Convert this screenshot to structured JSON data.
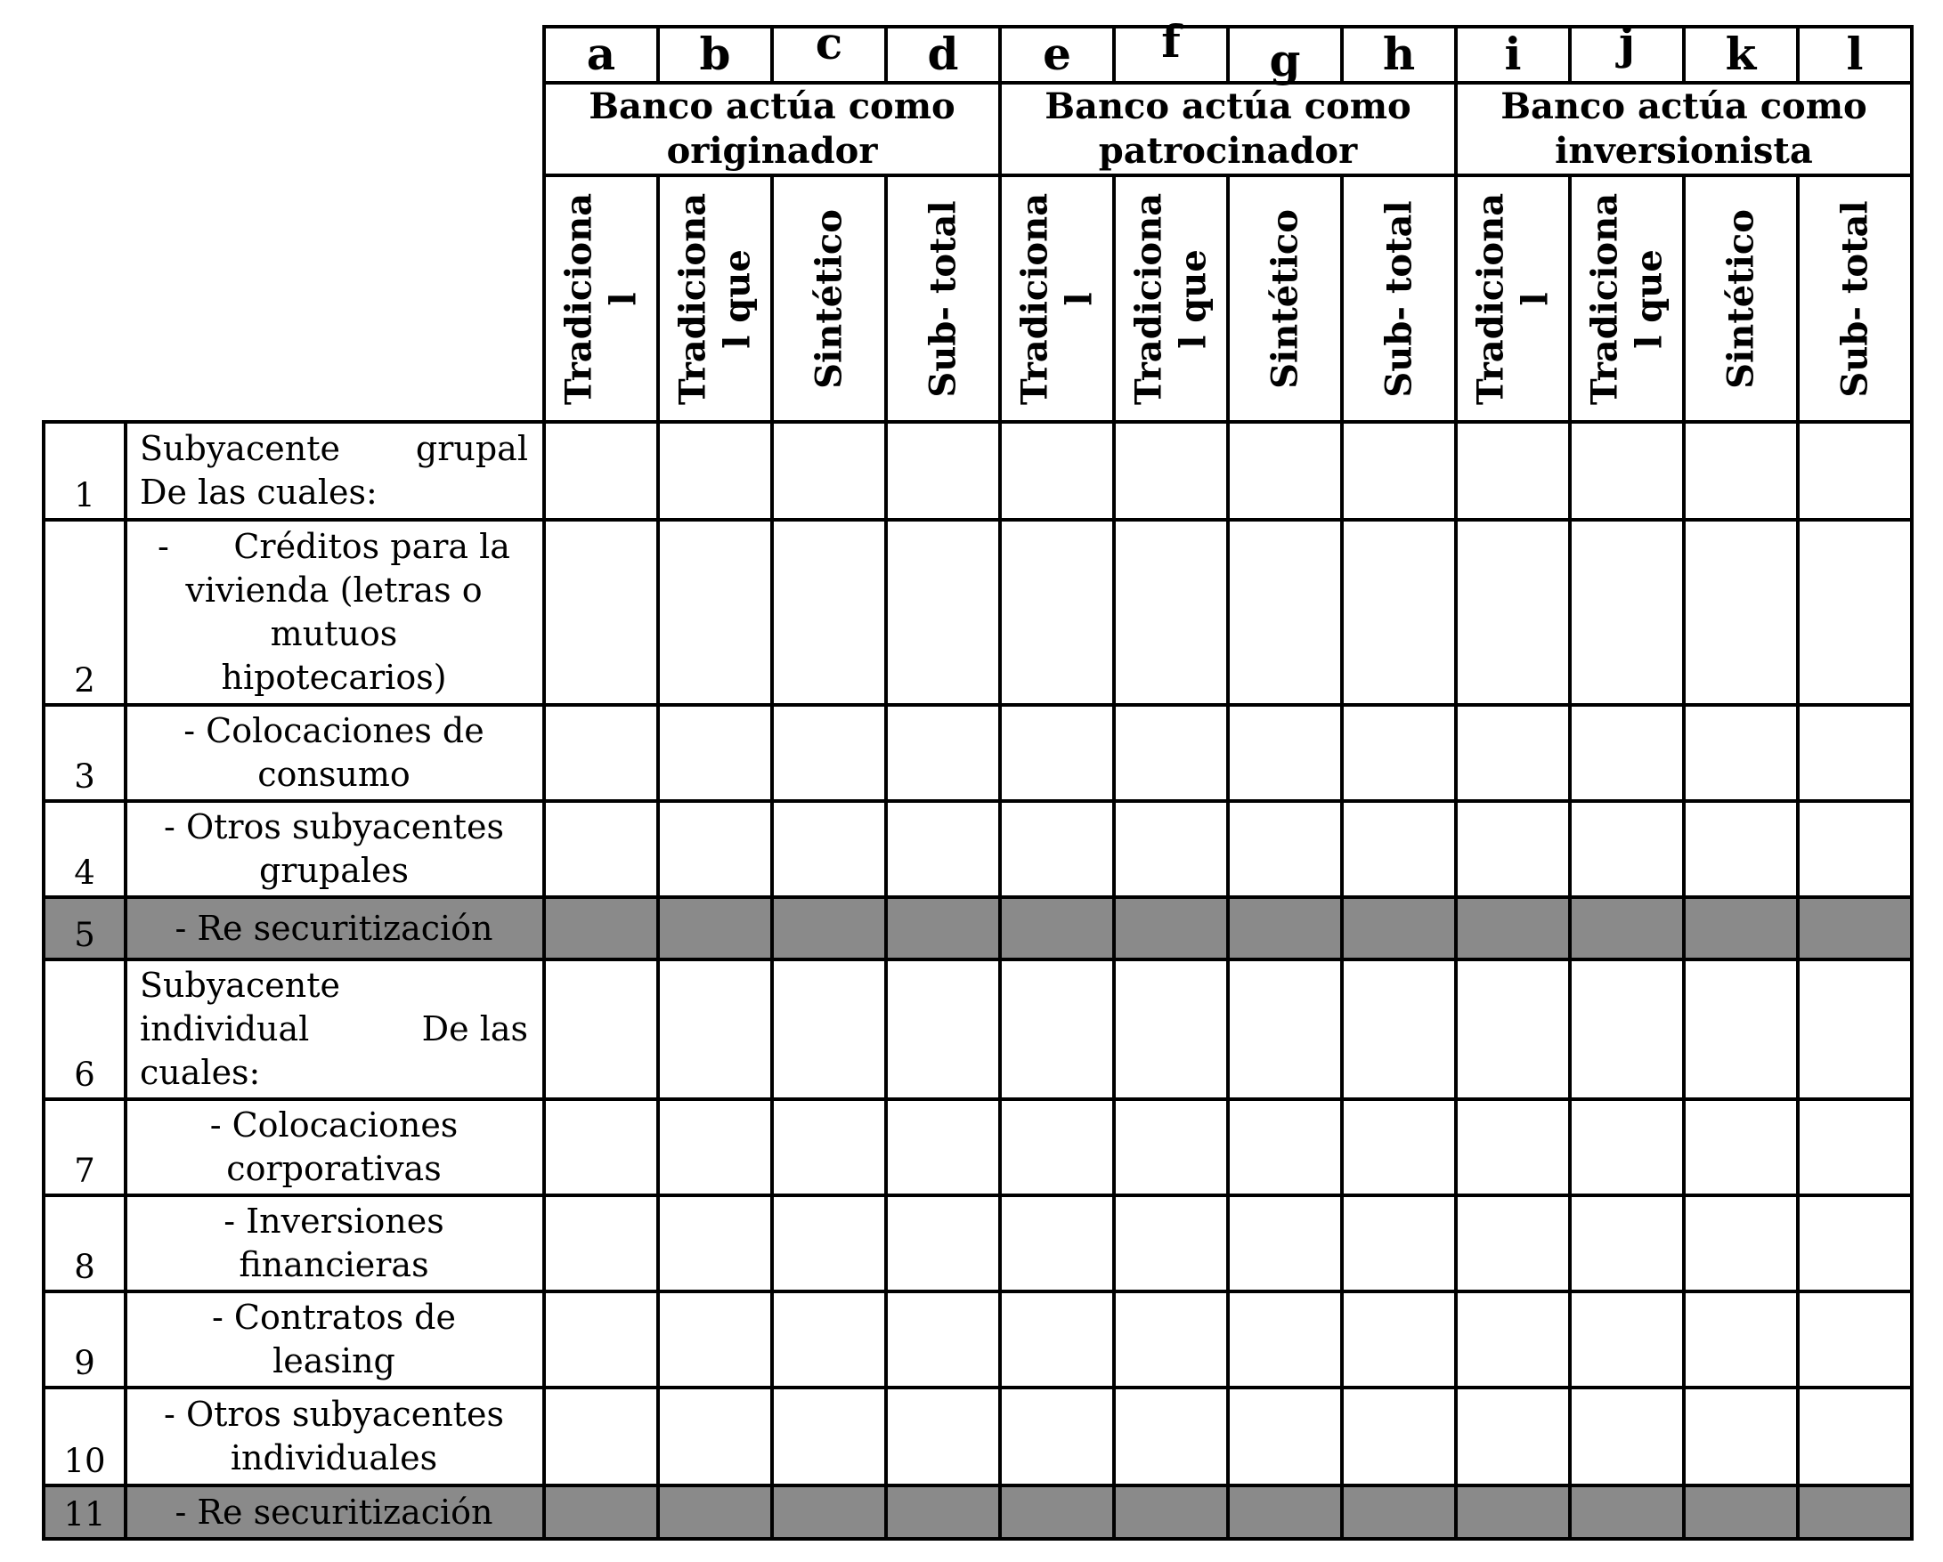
{
  "table": {
    "column_letters": [
      "a",
      "b",
      "c",
      "d",
      "e",
      "f",
      "g",
      "h",
      "i",
      "j",
      "k",
      "l"
    ],
    "groups": [
      {
        "label": "Banco actúa como\noriginador"
      },
      {
        "label": "Banco actúa como\npatrocinador"
      },
      {
        "label": "Banco actúa como\ninversionista"
      }
    ],
    "sub_columns": [
      "Tradiciona\nl",
      "Tradiciona\nl que",
      "Sintético",
      "Sub- total"
    ],
    "rows": [
      {
        "num": "1",
        "shaded": false,
        "align": "left",
        "lines": [
          {
            "left": "Subyacente",
            "right": "grupal"
          },
          {
            "text": "De las cuales:"
          }
        ]
      },
      {
        "num": "2",
        "shaded": false,
        "align": "center",
        "lines": [
          {
            "text": "-      Créditos para la"
          },
          {
            "text": "vivienda (letras o"
          },
          {
            "text": "mutuos"
          },
          {
            "text": "hipotecarios)"
          }
        ]
      },
      {
        "num": "3",
        "shaded": false,
        "align": "center",
        "lines": [
          {
            "text": "- Colocaciones de"
          },
          {
            "text": "consumo"
          }
        ]
      },
      {
        "num": "4",
        "shaded": false,
        "align": "center",
        "lines": [
          {
            "text": "- Otros subyacentes"
          },
          {
            "text": "grupales"
          }
        ]
      },
      {
        "num": "5",
        "shaded": true,
        "align": "center",
        "lines": [
          {
            "text": "- Re securitización"
          }
        ]
      },
      {
        "num": "6",
        "shaded": false,
        "align": "left",
        "lines": [
          {
            "text": "Subyacente"
          },
          {
            "left": "individual",
            "right": "De las"
          },
          {
            "text": "cuales:"
          }
        ]
      },
      {
        "num": "7",
        "shaded": false,
        "align": "center",
        "lines": [
          {
            "text": "- Colocaciones"
          },
          {
            "text": "corporativas"
          }
        ]
      },
      {
        "num": "8",
        "shaded": false,
        "align": "center",
        "lines": [
          {
            "text": "- Inversiones"
          },
          {
            "text": "financieras"
          }
        ]
      },
      {
        "num": "9",
        "shaded": false,
        "align": "center",
        "lines": [
          {
            "text": "- Contratos de"
          },
          {
            "text": "leasing"
          }
        ]
      },
      {
        "num": "10",
        "shaded": false,
        "align": "center",
        "lines": [
          {
            "text": "- Otros subyacentes"
          },
          {
            "text": "individuales"
          }
        ]
      },
      {
        "num": "11",
        "shaded": true,
        "align": "center",
        "lines": [
          {
            "text": "- Re securitización"
          }
        ]
      }
    ]
  },
  "colors": {
    "shaded_row": "#8a8a8a",
    "border": "#000000",
    "background": "#ffffff"
  }
}
